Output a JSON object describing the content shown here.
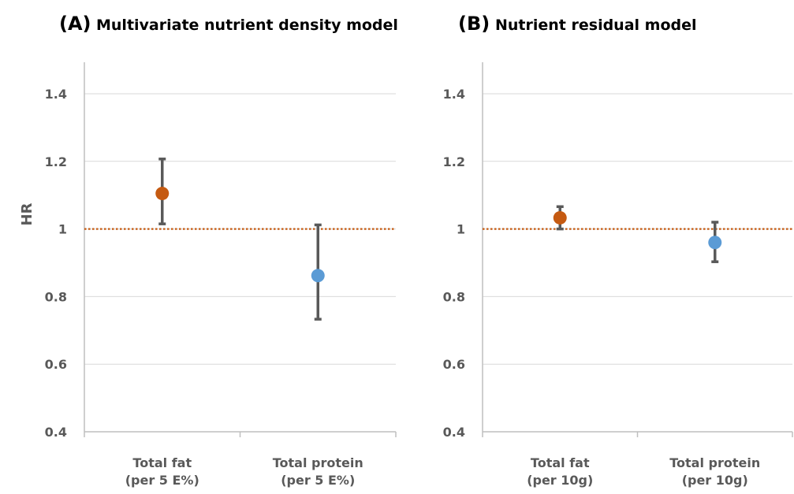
{
  "chart_data": [
    {
      "type": "scatter",
      "panel_letter": "(A)",
      "title": "Multivariate nutrient density model",
      "ylabel": "HR",
      "xlabel": "",
      "ylim": [
        0.4,
        1.4
      ],
      "yticks": [
        "0.4",
        "0.6",
        "0.8",
        "1",
        "1.2",
        "1.4"
      ],
      "reference_line": 1,
      "grid": true,
      "categories": [
        [
          "Total fat",
          "(per 5 E%)"
        ],
        [
          "Total protein",
          "(per 5 E%)"
        ]
      ],
      "points": [
        {
          "hr": 1.105,
          "lower": 1.015,
          "upper": 1.207,
          "color": "#C55A11"
        },
        {
          "hr": 0.862,
          "lower": 0.733,
          "upper": 1.012,
          "color": "#5B9BD5"
        }
      ]
    },
    {
      "type": "scatter",
      "panel_letter": "(B)",
      "title": "Nutrient residual model",
      "ylabel": "",
      "xlabel": "",
      "ylim": [
        0.4,
        1.4
      ],
      "yticks": [
        "0.4",
        "0.6",
        "0.8",
        "1",
        "1.2",
        "1.4"
      ],
      "reference_line": 1,
      "grid": true,
      "categories": [
        [
          "Total fat",
          "(per 10g)"
        ],
        [
          "Total protein",
          "(per 10g)"
        ]
      ],
      "points": [
        {
          "hr": 1.033,
          "lower": 1.0,
          "upper": 1.066,
          "color": "#C55A11"
        },
        {
          "hr": 0.96,
          "lower": 0.903,
          "upper": 1.02,
          "color": "#5B9BD5"
        }
      ]
    }
  ],
  "colors": {
    "axis": "#BFBFBF",
    "grid": "#D9D9D9",
    "errorbar": "#595959",
    "reference_line": "#C55A11"
  }
}
